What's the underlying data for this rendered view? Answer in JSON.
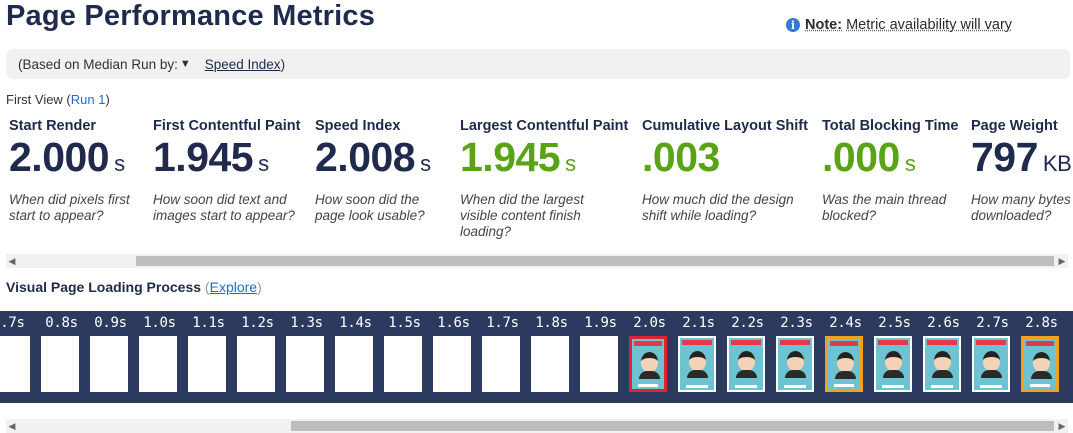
{
  "header": {
    "title": "Page Performance Metrics",
    "note_label": "Note:",
    "note_text": "Metric availability will vary"
  },
  "median": {
    "prefix": "(Based on Median Run by:",
    "selected": "Speed Index",
    "suffix": ")"
  },
  "first_view": {
    "label": "First View (",
    "run_link": "Run 1",
    "close": ")"
  },
  "metrics": [
    {
      "label": "Start Render",
      "value": "2.000",
      "unit": "s",
      "desc": "When did pixels first start to appear?",
      "color": "#1f2a4d"
    },
    {
      "label": "First Contentful Paint",
      "value": "1.945",
      "unit": "s",
      "desc": "How soon did text and images start to appear?",
      "color": "#1f2a4d"
    },
    {
      "label": "Speed Index",
      "value": "2.008",
      "unit": "s",
      "desc": "How soon did the page look usable?",
      "color": "#1f2a4d"
    },
    {
      "label": "Largest Contentful Paint",
      "value": "1.945",
      "unit": "s",
      "desc": "When did the largest visible content finish loading?",
      "color": "#5aa317"
    },
    {
      "label": "Cumulative Layout Shift",
      "value": ".003",
      "unit": "",
      "desc": "How much did the design shift while loading?",
      "color": "#5aa317"
    },
    {
      "label": "Total Blocking Time",
      "value": ".000",
      "unit": "s",
      "desc": "Was the main thread blocked?",
      "color": "#5aa317"
    },
    {
      "label": "Page Weight",
      "value": "797",
      "unit": "KB",
      "desc": "How many bytes downloaded?",
      "color": "#1f2a4d"
    }
  ],
  "visual": {
    "title": "Visual Page Loading Process",
    "explore_open": " (",
    "explore_link": "Explore",
    "explore_close": ")"
  },
  "filmstrip": [
    {
      "time": ".7s",
      "state": "blank"
    },
    {
      "time": "0.8s",
      "state": "blank"
    },
    {
      "time": "0.9s",
      "state": "blank"
    },
    {
      "time": "1.0s",
      "state": "blank"
    },
    {
      "time": "1.1s",
      "state": "blank"
    },
    {
      "time": "1.2s",
      "state": "blank"
    },
    {
      "time": "1.3s",
      "state": "blank"
    },
    {
      "time": "1.4s",
      "state": "blank"
    },
    {
      "time": "1.5s",
      "state": "blank"
    },
    {
      "time": "1.6s",
      "state": "blank"
    },
    {
      "time": "1.7s",
      "state": "blank"
    },
    {
      "time": "1.8s",
      "state": "blank"
    },
    {
      "time": "1.9s",
      "state": "blank"
    },
    {
      "time": "2.0s",
      "state": "rendered",
      "highlight": "red"
    },
    {
      "time": "2.1s",
      "state": "rendered",
      "highlight": ""
    },
    {
      "time": "2.2s",
      "state": "rendered",
      "highlight": ""
    },
    {
      "time": "2.3s",
      "state": "rendered",
      "highlight": ""
    },
    {
      "time": "2.4s",
      "state": "rendered",
      "highlight": "orange"
    },
    {
      "time": "2.5s",
      "state": "rendered",
      "highlight": ""
    },
    {
      "time": "2.6s",
      "state": "rendered",
      "highlight": ""
    },
    {
      "time": "2.7s",
      "state": "rendered",
      "highlight": ""
    },
    {
      "time": "2.8s",
      "state": "rendered",
      "highlight": "orange"
    }
  ]
}
